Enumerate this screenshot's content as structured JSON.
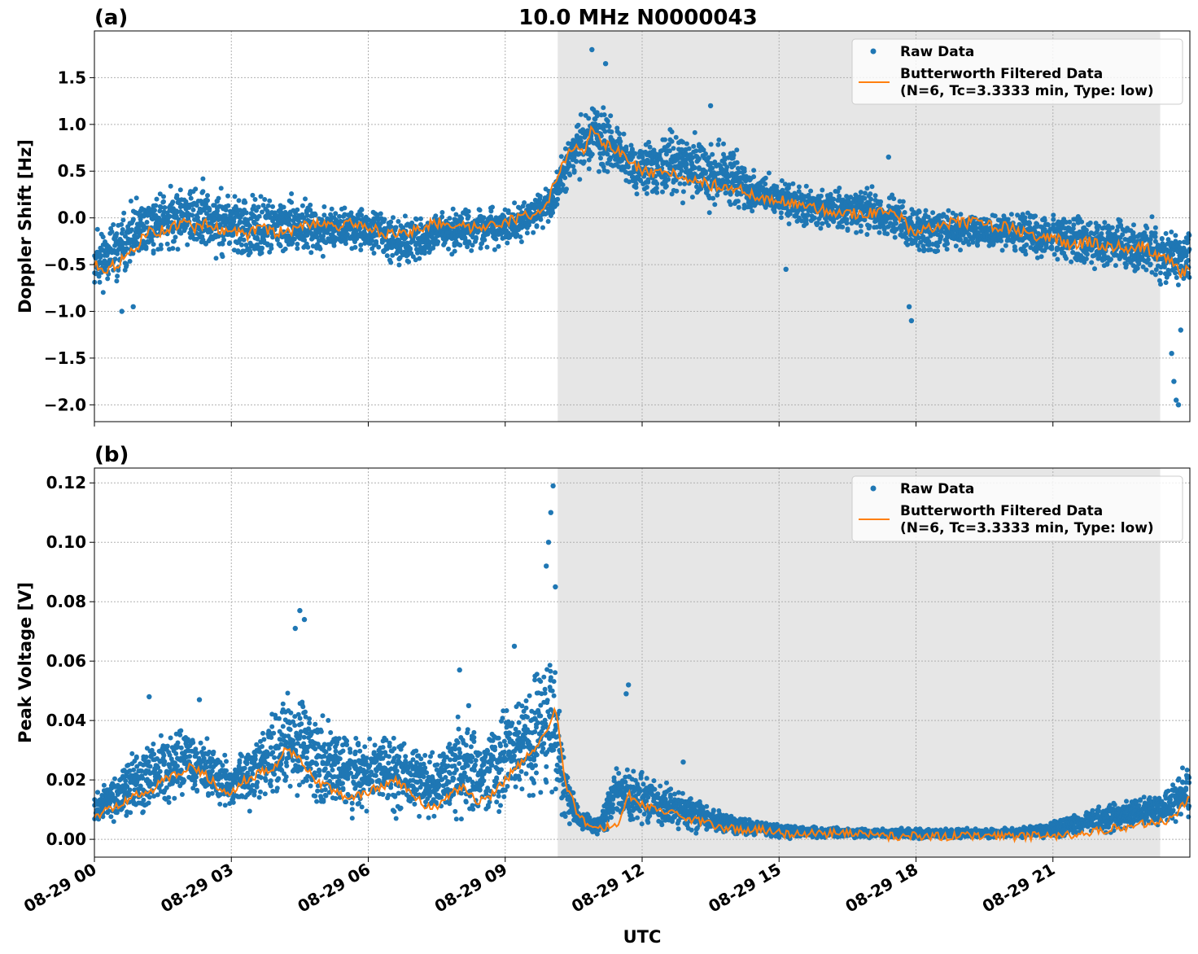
{
  "figure": {
    "title": "10.0 MHz N0000043",
    "xlabel": "UTC",
    "x_ticks": [
      "08-29 00",
      "08-29 03",
      "08-29 06",
      "08-29 09",
      "08-29 12",
      "08-29 15",
      "08-29 18",
      "08-29 21"
    ],
    "shade_start_hour": 10.15,
    "shade_end_hour": 23.35,
    "colors": {
      "raw": "#1f77b4",
      "filtered": "#ff7f0e",
      "shade": "#e6e6e6"
    }
  },
  "chart_data": [
    {
      "type": "scatter",
      "panel_label": "(a)",
      "ylabel": "Doppler Shift [Hz]",
      "xlim_hours": [
        0,
        24
      ],
      "ylim": [
        -2.18,
        2.0
      ],
      "y_ticks": [
        "1.5",
        "1.0",
        "0.5",
        "0.0",
        "−0.5",
        "−1.0",
        "−1.5",
        "−2.0"
      ],
      "y_tick_values": [
        1.5,
        1.0,
        0.5,
        0.0,
        -0.5,
        -1.0,
        -1.5,
        -2.0
      ],
      "grid": true,
      "legend": {
        "position": "top-right",
        "raw_label": "Raw Data",
        "filtered_label": "Butterworth Filtered Data",
        "filtered_label_2": "(N=6, Tc=3.3333 min, Type: low)"
      },
      "series": [
        {
          "name": "Butterworth Filtered Data",
          "x_hours": [
            0,
            0.3,
            0.6,
            0.9,
            1.1,
            1.4,
            1.7,
            2.0,
            2.2,
            2.5,
            2.8,
            3.0,
            3.3,
            3.6,
            3.9,
            4.2,
            4.5,
            4.8,
            5.1,
            5.4,
            5.7,
            6.0,
            6.3,
            6.6,
            6.9,
            7.2,
            7.5,
            7.8,
            8.1,
            8.4,
            8.7,
            9.0,
            9.3,
            9.6,
            9.9,
            10.1,
            10.3,
            10.5,
            10.7,
            10.9,
            11.1,
            11.3,
            11.5,
            11.7,
            12.0,
            12.3,
            12.6,
            12.9,
            13.2,
            13.5,
            13.8,
            14.1,
            14.4,
            14.7,
            15.0,
            15.3,
            15.6,
            15.9,
            16.2,
            16.5,
            16.8,
            17.1,
            17.4,
            17.7,
            17.9,
            18.2,
            18.5,
            18.8,
            19.1,
            19.4,
            19.7,
            20.0,
            20.3,
            20.6,
            20.9,
            21.2,
            21.5,
            21.8,
            22.1,
            22.4,
            22.7,
            23.0,
            23.3,
            23.6,
            23.8,
            24.0
          ],
          "y": [
            -0.5,
            -0.55,
            -0.45,
            -0.35,
            -0.15,
            -0.15,
            -0.1,
            -0.05,
            -0.1,
            -0.05,
            -0.15,
            -0.1,
            -0.2,
            -0.1,
            -0.15,
            -0.15,
            -0.1,
            -0.05,
            -0.05,
            -0.1,
            -0.05,
            -0.1,
            -0.15,
            -0.2,
            -0.15,
            -0.1,
            -0.05,
            -0.05,
            -0.1,
            -0.1,
            -0.05,
            -0.05,
            0.0,
            0.05,
            0.1,
            0.4,
            0.6,
            0.75,
            0.7,
            0.95,
            0.8,
            0.75,
            0.7,
            0.6,
            0.5,
            0.45,
            0.5,
            0.45,
            0.4,
            0.35,
            0.35,
            0.3,
            0.25,
            0.2,
            0.2,
            0.15,
            0.1,
            0.1,
            0.05,
            0.05,
            0.05,
            0.05,
            0.05,
            0.0,
            -0.15,
            -0.1,
            -0.1,
            -0.05,
            -0.05,
            -0.05,
            -0.1,
            -0.1,
            -0.15,
            -0.2,
            -0.2,
            -0.25,
            -0.3,
            -0.25,
            -0.3,
            -0.3,
            -0.35,
            -0.3,
            -0.4,
            -0.45,
            -0.6,
            -0.55
          ]
        },
        {
          "name": "Raw Data",
          "x_hours": [
            0,
            0.5,
            1.0,
            1.5,
            2.0,
            2.5,
            3.0,
            3.5,
            4.0,
            4.5,
            5.0,
            5.5,
            6.0,
            6.5,
            7.0,
            7.5,
            8.0,
            8.5,
            9.0,
            9.5,
            10.0,
            10.5,
            11.0,
            11.5,
            12.0,
            12.5,
            13.0,
            13.5,
            14.0,
            14.5,
            15.0,
            15.5,
            16.0,
            16.5,
            17.0,
            17.5,
            18.0,
            18.5,
            19.0,
            19.5,
            20.0,
            20.5,
            21.0,
            21.5,
            22.0,
            22.5,
            23.0,
            23.5,
            24.0
          ],
          "y_low": [
            -0.9,
            -0.75,
            -0.6,
            -0.45,
            -0.45,
            -0.5,
            -0.55,
            -0.6,
            -0.5,
            -0.45,
            -0.45,
            -0.4,
            -0.4,
            -0.55,
            -0.6,
            -0.45,
            -0.4,
            -0.4,
            -0.35,
            -0.25,
            -0.1,
            0.35,
            0.4,
            0.3,
            0.1,
            0.1,
            0.1,
            0.0,
            0.0,
            -0.05,
            -0.05,
            -0.15,
            -0.15,
            -0.2,
            -0.25,
            -0.3,
            -0.45,
            -0.45,
            -0.35,
            -0.35,
            -0.4,
            -0.45,
            -0.5,
            -0.55,
            -0.6,
            -0.65,
            -0.7,
            -0.85,
            -0.9
          ],
          "y_high": [
            0.0,
            0.05,
            0.3,
            0.4,
            0.5,
            0.45,
            0.4,
            0.3,
            0.3,
            0.25,
            0.2,
            0.2,
            0.15,
            0.1,
            0.1,
            0.15,
            0.2,
            0.15,
            0.15,
            0.25,
            0.4,
            1.1,
            1.45,
            1.05,
            0.9,
            1.0,
            1.05,
            0.95,
            0.85,
            0.55,
            0.45,
            0.4,
            0.35,
            0.35,
            0.45,
            0.3,
            0.15,
            0.15,
            0.1,
            0.1,
            0.1,
            0.1,
            0.1,
            0.1,
            0.05,
            0.05,
            0.05,
            0.05,
            0.0
          ],
          "outliers": [
            [
              0.6,
              -1.0
            ],
            [
              0.85,
              -0.95
            ],
            [
              10.9,
              1.8
            ],
            [
              11.2,
              1.65
            ],
            [
              17.9,
              -1.1
            ],
            [
              17.85,
              -0.95
            ],
            [
              23.65,
              -1.75
            ],
            [
              23.7,
              -1.95
            ],
            [
              23.75,
              -2.0
            ],
            [
              23.6,
              -1.45
            ],
            [
              23.8,
              -1.2
            ],
            [
              15.15,
              -0.55
            ],
            [
              13.5,
              1.2
            ],
            [
              17.4,
              0.65
            ]
          ]
        }
      ]
    },
    {
      "type": "scatter",
      "panel_label": "(b)",
      "ylabel": "Peak Voltage [V]",
      "xlim_hours": [
        0,
        24
      ],
      "ylim": [
        -0.006,
        0.125
      ],
      "y_ticks": [
        "0.12",
        "0.10",
        "0.08",
        "0.06",
        "0.04",
        "0.02",
        "0.00"
      ],
      "y_tick_values": [
        0.12,
        0.1,
        0.08,
        0.06,
        0.04,
        0.02,
        0.0
      ],
      "grid": true,
      "legend": {
        "position": "top-right",
        "raw_label": "Raw Data",
        "filtered_label": "Butterworth Filtered Data",
        "filtered_label_2": "(N=6, Tc=3.3333 min, Type: low)"
      },
      "series": [
        {
          "name": "Butterworth Filtered Data",
          "x_hours": [
            0,
            0.3,
            0.6,
            0.9,
            1.2,
            1.5,
            1.8,
            2.1,
            2.4,
            2.7,
            3.0,
            3.3,
            3.6,
            3.9,
            4.2,
            4.5,
            4.8,
            5.1,
            5.4,
            5.7,
            6.0,
            6.3,
            6.6,
            6.9,
            7.2,
            7.5,
            7.8,
            8.1,
            8.4,
            8.7,
            9.0,
            9.3,
            9.6,
            9.9,
            10.1,
            10.3,
            10.6,
            10.9,
            11.2,
            11.5,
            11.7,
            12.0,
            12.3,
            12.6,
            12.9,
            13.2,
            13.5,
            13.8,
            14.2,
            14.6,
            15.0,
            15.5,
            16.0,
            16.5,
            17.0,
            17.5,
            18.0,
            18.5,
            19.0,
            19.5,
            20.0,
            20.5,
            21.0,
            21.5,
            22.0,
            22.5,
            23.0,
            23.4,
            23.7,
            24.0
          ],
          "y": [
            0.008,
            0.01,
            0.012,
            0.015,
            0.016,
            0.02,
            0.022,
            0.025,
            0.022,
            0.018,
            0.016,
            0.02,
            0.022,
            0.024,
            0.03,
            0.028,
            0.02,
            0.018,
            0.015,
            0.014,
            0.016,
            0.018,
            0.02,
            0.016,
            0.012,
            0.01,
            0.015,
            0.018,
            0.012,
            0.015,
            0.02,
            0.025,
            0.03,
            0.035,
            0.045,
            0.02,
            0.008,
            0.004,
            0.004,
            0.005,
            0.015,
            0.012,
            0.01,
            0.009,
            0.008,
            0.006,
            0.005,
            0.004,
            0.003,
            0.003,
            0.002,
            0.002,
            0.002,
            0.002,
            0.002,
            0.001,
            0.001,
            0.001,
            0.001,
            0.001,
            0.001,
            0.001,
            0.001,
            0.002,
            0.003,
            0.004,
            0.005,
            0.006,
            0.008,
            0.015
          ]
        },
        {
          "name": "Raw Data",
          "x_hours": [
            0,
            0.5,
            1.0,
            1.5,
            2.0,
            2.5,
            3.0,
            3.5,
            4.0,
            4.5,
            5.0,
            5.5,
            6.0,
            6.5,
            7.0,
            7.5,
            8.0,
            8.5,
            9.0,
            9.5,
            10.0,
            10.3,
            10.6,
            11.0,
            11.5,
            12.0,
            12.5,
            13.0,
            13.5,
            14.0,
            14.5,
            15.0,
            15.5,
            16.0,
            16.5,
            17.0,
            17.5,
            18.0,
            18.5,
            19.0,
            19.5,
            20.0,
            20.5,
            21.0,
            21.5,
            22.0,
            22.5,
            23.0,
            23.5,
            24.0
          ],
          "y_low": [
            0.004,
            0.005,
            0.006,
            0.008,
            0.01,
            0.012,
            0.008,
            0.006,
            0.008,
            0.01,
            0.008,
            0.006,
            0.005,
            0.006,
            0.005,
            0.004,
            0.004,
            0.004,
            0.005,
            0.006,
            0.008,
            0.004,
            0.002,
            0.001,
            0.002,
            0.003,
            0.002,
            0.002,
            0.001,
            0.001,
            0.001,
            0.0,
            0.0,
            0.0,
            0.0,
            0.0,
            0.0,
            0.0,
            0.0,
            0.0,
            0.0,
            0.0,
            0.0,
            0.0,
            0.001,
            0.001,
            0.002,
            0.003,
            0.004,
            0.005
          ],
          "y_high": [
            0.016,
            0.025,
            0.035,
            0.04,
            0.042,
            0.035,
            0.028,
            0.04,
            0.05,
            0.055,
            0.045,
            0.04,
            0.038,
            0.042,
            0.035,
            0.03,
            0.045,
            0.04,
            0.05,
            0.06,
            0.075,
            0.03,
            0.012,
            0.008,
            0.03,
            0.025,
            0.02,
            0.018,
            0.012,
            0.009,
            0.007,
            0.006,
            0.005,
            0.005,
            0.004,
            0.004,
            0.004,
            0.004,
            0.004,
            0.004,
            0.004,
            0.004,
            0.005,
            0.007,
            0.009,
            0.012,
            0.014,
            0.016,
            0.018,
            0.03
          ],
          "outliers": [
            [
              4.5,
              0.077
            ],
            [
              4.6,
              0.074
            ],
            [
              4.4,
              0.071
            ],
            [
              10.05,
              0.119
            ],
            [
              10.0,
              0.11
            ],
            [
              9.95,
              0.1
            ],
            [
              9.9,
              0.092
            ],
            [
              10.1,
              0.085
            ],
            [
              11.7,
              0.052
            ],
            [
              11.65,
              0.049
            ],
            [
              1.2,
              0.048
            ],
            [
              2.3,
              0.047
            ],
            [
              8.0,
              0.057
            ],
            [
              8.2,
              0.045
            ],
            [
              9.2,
              0.065
            ],
            [
              12.9,
              0.026
            ]
          ]
        }
      ]
    }
  ]
}
